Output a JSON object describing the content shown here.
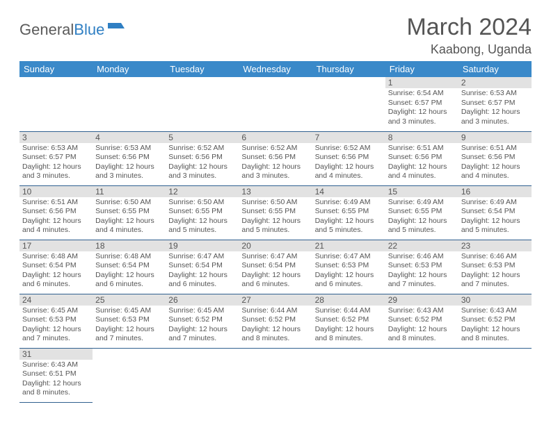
{
  "logo": {
    "text1": "General",
    "text2": "Blue"
  },
  "title": "March 2024",
  "location": "Kaabong, Uganda",
  "colors": {
    "header_bg": "#3a89c9",
    "header_text": "#ffffff",
    "row_divider": "#2f5f8f",
    "daynum_bg": "#e2e2e2",
    "body_text": "#555555"
  },
  "weekdays": [
    "Sunday",
    "Monday",
    "Tuesday",
    "Wednesday",
    "Thursday",
    "Friday",
    "Saturday"
  ],
  "weeks": [
    [
      null,
      null,
      null,
      null,
      null,
      {
        "n": "1",
        "sr": "6:54 AM",
        "ss": "6:57 PM",
        "dl": "12 hours and 3 minutes."
      },
      {
        "n": "2",
        "sr": "6:53 AM",
        "ss": "6:57 PM",
        "dl": "12 hours and 3 minutes."
      }
    ],
    [
      {
        "n": "3",
        "sr": "6:53 AM",
        "ss": "6:57 PM",
        "dl": "12 hours and 3 minutes."
      },
      {
        "n": "4",
        "sr": "6:53 AM",
        "ss": "6:56 PM",
        "dl": "12 hours and 3 minutes."
      },
      {
        "n": "5",
        "sr": "6:52 AM",
        "ss": "6:56 PM",
        "dl": "12 hours and 3 minutes."
      },
      {
        "n": "6",
        "sr": "6:52 AM",
        "ss": "6:56 PM",
        "dl": "12 hours and 3 minutes."
      },
      {
        "n": "7",
        "sr": "6:52 AM",
        "ss": "6:56 PM",
        "dl": "12 hours and 4 minutes."
      },
      {
        "n": "8",
        "sr": "6:51 AM",
        "ss": "6:56 PM",
        "dl": "12 hours and 4 minutes."
      },
      {
        "n": "9",
        "sr": "6:51 AM",
        "ss": "6:56 PM",
        "dl": "12 hours and 4 minutes."
      }
    ],
    [
      {
        "n": "10",
        "sr": "6:51 AM",
        "ss": "6:56 PM",
        "dl": "12 hours and 4 minutes."
      },
      {
        "n": "11",
        "sr": "6:50 AM",
        "ss": "6:55 PM",
        "dl": "12 hours and 4 minutes."
      },
      {
        "n": "12",
        "sr": "6:50 AM",
        "ss": "6:55 PM",
        "dl": "12 hours and 5 minutes."
      },
      {
        "n": "13",
        "sr": "6:50 AM",
        "ss": "6:55 PM",
        "dl": "12 hours and 5 minutes."
      },
      {
        "n": "14",
        "sr": "6:49 AM",
        "ss": "6:55 PM",
        "dl": "12 hours and 5 minutes."
      },
      {
        "n": "15",
        "sr": "6:49 AM",
        "ss": "6:55 PM",
        "dl": "12 hours and 5 minutes."
      },
      {
        "n": "16",
        "sr": "6:49 AM",
        "ss": "6:54 PM",
        "dl": "12 hours and 5 minutes."
      }
    ],
    [
      {
        "n": "17",
        "sr": "6:48 AM",
        "ss": "6:54 PM",
        "dl": "12 hours and 6 minutes."
      },
      {
        "n": "18",
        "sr": "6:48 AM",
        "ss": "6:54 PM",
        "dl": "12 hours and 6 minutes."
      },
      {
        "n": "19",
        "sr": "6:47 AM",
        "ss": "6:54 PM",
        "dl": "12 hours and 6 minutes."
      },
      {
        "n": "20",
        "sr": "6:47 AM",
        "ss": "6:54 PM",
        "dl": "12 hours and 6 minutes."
      },
      {
        "n": "21",
        "sr": "6:47 AM",
        "ss": "6:53 PM",
        "dl": "12 hours and 6 minutes."
      },
      {
        "n": "22",
        "sr": "6:46 AM",
        "ss": "6:53 PM",
        "dl": "12 hours and 7 minutes."
      },
      {
        "n": "23",
        "sr": "6:46 AM",
        "ss": "6:53 PM",
        "dl": "12 hours and 7 minutes."
      }
    ],
    [
      {
        "n": "24",
        "sr": "6:45 AM",
        "ss": "6:53 PM",
        "dl": "12 hours and 7 minutes."
      },
      {
        "n": "25",
        "sr": "6:45 AM",
        "ss": "6:53 PM",
        "dl": "12 hours and 7 minutes."
      },
      {
        "n": "26",
        "sr": "6:45 AM",
        "ss": "6:52 PM",
        "dl": "12 hours and 7 minutes."
      },
      {
        "n": "27",
        "sr": "6:44 AM",
        "ss": "6:52 PM",
        "dl": "12 hours and 8 minutes."
      },
      {
        "n": "28",
        "sr": "6:44 AM",
        "ss": "6:52 PM",
        "dl": "12 hours and 8 minutes."
      },
      {
        "n": "29",
        "sr": "6:43 AM",
        "ss": "6:52 PM",
        "dl": "12 hours and 8 minutes."
      },
      {
        "n": "30",
        "sr": "6:43 AM",
        "ss": "6:52 PM",
        "dl": "12 hours and 8 minutes."
      }
    ],
    [
      {
        "n": "31",
        "sr": "6:43 AM",
        "ss": "6:51 PM",
        "dl": "12 hours and 8 minutes."
      },
      null,
      null,
      null,
      null,
      null,
      null
    ]
  ],
  "labels": {
    "sunrise": "Sunrise:",
    "sunset": "Sunset:",
    "daylight": "Daylight:"
  }
}
